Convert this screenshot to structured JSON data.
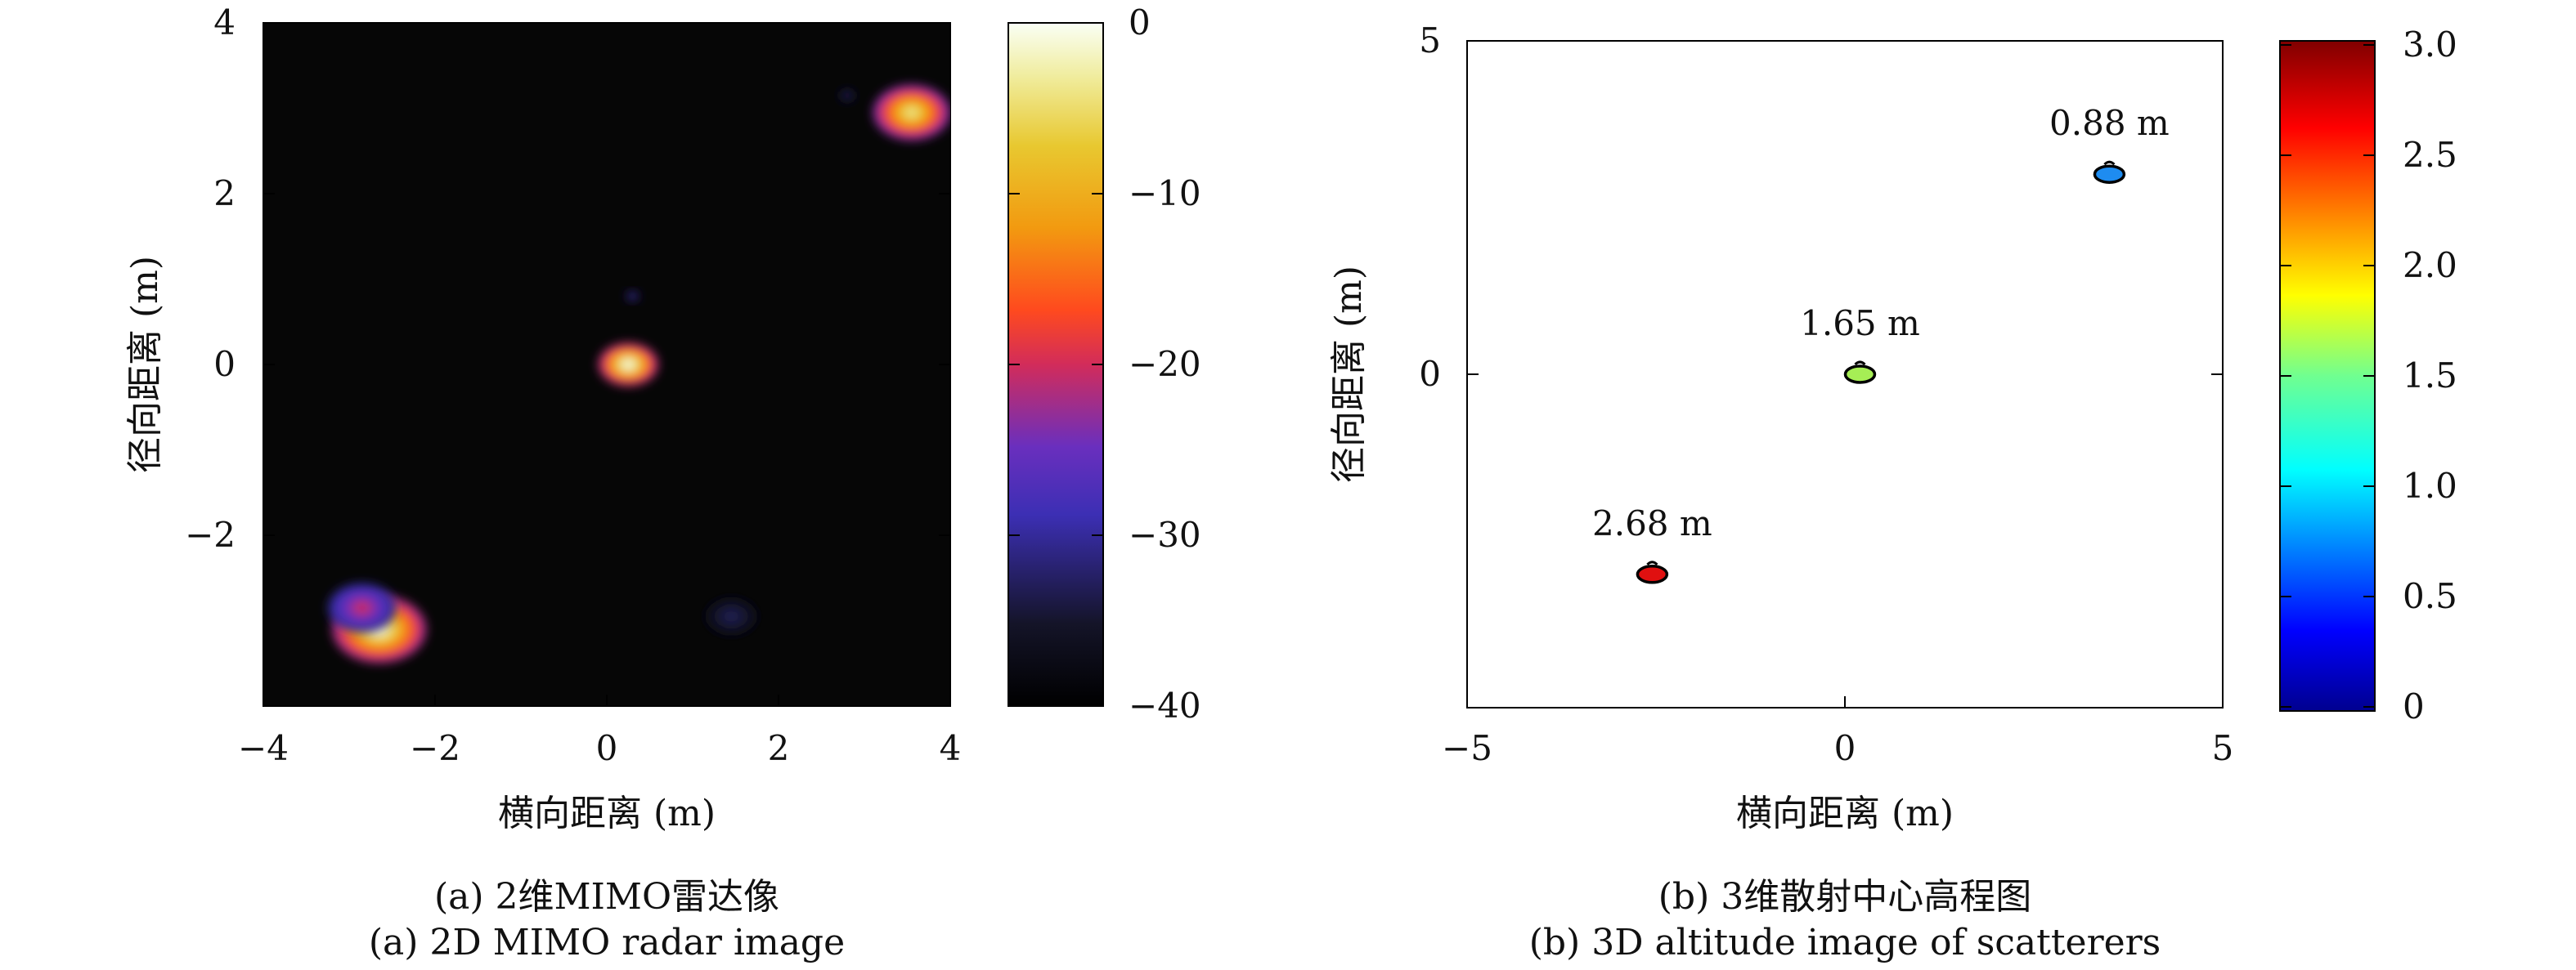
{
  "chart_data": [
    {
      "type": "heatmap",
      "caption_cn": "(a) 2维MIMO雷达像",
      "caption_en": "(a) 2D MIMO radar image",
      "xlabel": "横向距离 (m)",
      "ylabel": "径向距离 (m)",
      "xlim": [
        -4,
        4
      ],
      "ylim": [
        -4,
        4
      ],
      "xticks": [
        -4,
        -2,
        0,
        2,
        4
      ],
      "yticks": [
        -2,
        0,
        2,
        4
      ],
      "xtick_labels": [
        "−4",
        "−2",
        "0",
        "2",
        "4"
      ],
      "ytick_labels": [
        "−2",
        "0",
        "2",
        "4"
      ],
      "colorbar": {
        "range": [
          -40,
          0
        ],
        "ticks": [
          0,
          -10,
          -20,
          -30,
          -40
        ],
        "tick_labels": [
          "0",
          "−10",
          "−20",
          "−30",
          "−40"
        ],
        "colormap": "gnuplot-hot (black→purple→red→orange→yellow→white)"
      },
      "background_color": "#060606",
      "scatterers": [
        {
          "x": 0.25,
          "y": 0.0,
          "peak_db": 0,
          "spread": 0.35
        },
        {
          "x": 0.3,
          "y": 0.8,
          "peak_db": -28,
          "spread": 0.08
        },
        {
          "x": 3.55,
          "y": 2.95,
          "peak_db": -4,
          "spread": 0.45
        },
        {
          "x": 2.8,
          "y": 3.15,
          "peak_db": -32,
          "spread": 0.1
        },
        {
          "x": -2.65,
          "y": -3.1,
          "peak_db": -1,
          "spread": 0.55
        },
        {
          "x": -2.85,
          "y": -2.85,
          "peak_db": -20,
          "spread": 0.4
        },
        {
          "x": 1.45,
          "y": -2.95,
          "peak_db": -33,
          "spread": 0.3
        }
      ]
    },
    {
      "type": "scatter",
      "caption_cn": "(b) 3维散射中心高程图",
      "caption_en": "(b) 3D altitude image of scatterers",
      "xlabel": "横向距离 (m)",
      "ylabel": "径向距离 (m)",
      "xlim": [
        -5,
        5
      ],
      "ylim": [
        -5,
        5
      ],
      "xticks": [
        -5,
        0,
        5
      ],
      "yticks": [
        0,
        5
      ],
      "xtick_labels": [
        "−5",
        "0",
        "5"
      ],
      "ytick_labels": [
        "0",
        "5"
      ],
      "colorbar": {
        "range": [
          0,
          3.0
        ],
        "ticks": [
          0,
          0.5,
          1.0,
          1.5,
          2.0,
          2.5,
          3.0
        ],
        "tick_labels": [
          "0",
          "0.5",
          "1.0",
          "1.5",
          "2.0",
          "2.5",
          "3.0"
        ],
        "colormap": "jet"
      },
      "points": [
        {
          "x": 3.5,
          "y": 3.0,
          "height": 0.88,
          "label": "0.88 m",
          "color": "#1e8cf0"
        },
        {
          "x": 0.2,
          "y": 0.0,
          "height": 1.65,
          "label": "1.65 m",
          "color": "#a6ee55"
        },
        {
          "x": -2.55,
          "y": -3.0,
          "height": 2.68,
          "label": "2.68 m",
          "color": "#e01010"
        }
      ]
    }
  ]
}
